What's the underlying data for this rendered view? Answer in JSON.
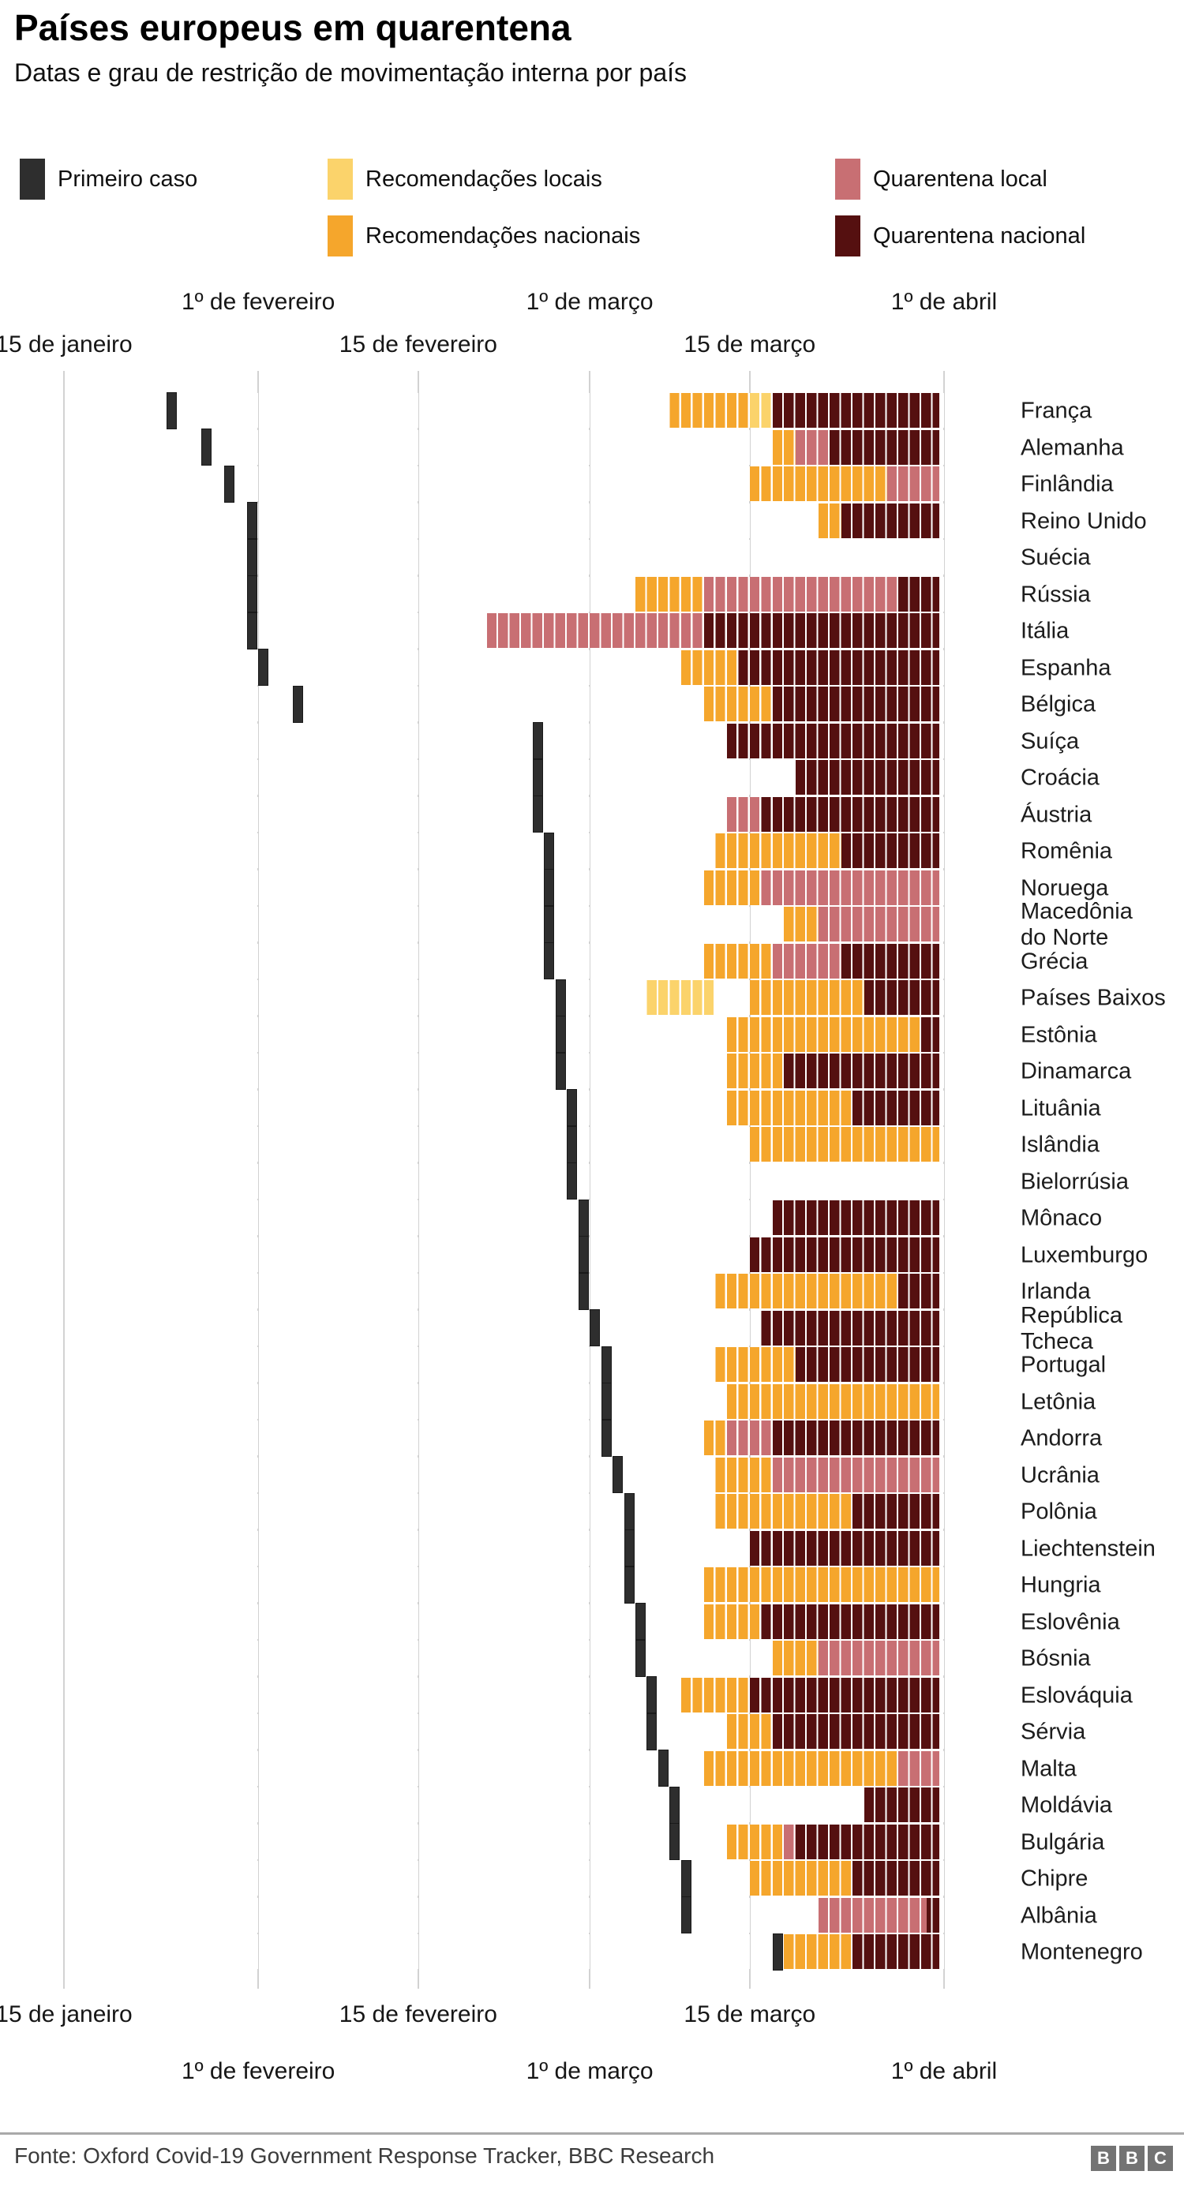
{
  "title": "Países europeus em quarentena",
  "subtitle": "Datas e grau de restrição de movimentação interna por país",
  "legend": {
    "items": [
      {
        "key": "first_case",
        "label": "Primeiro caso"
      },
      {
        "key": "local_rec",
        "label": "Recomendações locais"
      },
      {
        "key": "local_q",
        "label": "Quarentena local"
      },
      {
        "key": "national_rec",
        "label": "Recomendações nacionais"
      },
      {
        "key": "national_q",
        "label": "Quarentena nacional"
      }
    ]
  },
  "colors": {
    "first_case": "#2e2e2e",
    "first_case_border": "#1a1a1a",
    "local_rec": "#fbd36b",
    "national_rec": "#f5a62c",
    "local_q": "#c86f73",
    "national_q": "#551010",
    "gridline": "#d2d2d2",
    "cell_separator": "#ffffff"
  },
  "chart_data": {
    "type": "timeline-bar",
    "title": "Países europeus em quarentena",
    "subtitle": "Datas e grau de restrição de movimentação interna por país",
    "x_unit": "days since 15 de janeiro 2020",
    "x_range": [
      0,
      77
    ],
    "grid_days": [
      0,
      17,
      31,
      46,
      60,
      77
    ],
    "axis_ticks_upper": [
      {
        "label": "1º de fevereiro",
        "day": 17
      },
      {
        "label": "1º de março",
        "day": 46
      },
      {
        "label": "1º de abril",
        "day": 77
      }
    ],
    "axis_ticks_lower": [
      {
        "label": "15 de janeiro",
        "day": 0
      },
      {
        "label": "15 de fevereiro",
        "day": 31
      },
      {
        "label": "15 de março",
        "day": 60
      }
    ],
    "series_categories": {
      "local_rec": "Recomendações locais",
      "national_rec": "Recomendações nacionais",
      "local_q": "Quarentena local",
      "national_q": "Quarentena nacional"
    },
    "countries": [
      {
        "name": "França",
        "first_case_day": 9,
        "segments": [
          {
            "cat": "national_rec",
            "start": 53,
            "end": 60
          },
          {
            "cat": "local_rec",
            "start": 60,
            "end": 62
          },
          {
            "cat": "national_q",
            "start": 62,
            "end": 76.6
          }
        ]
      },
      {
        "name": "Alemanha",
        "first_case_day": 12,
        "segments": [
          {
            "cat": "national_rec",
            "start": 62,
            "end": 64
          },
          {
            "cat": "local_q",
            "start": 64,
            "end": 67
          },
          {
            "cat": "national_q",
            "start": 67,
            "end": 76.6
          }
        ]
      },
      {
        "name": "Finlândia",
        "first_case_day": 14,
        "segments": [
          {
            "cat": "national_rec",
            "start": 60,
            "end": 72
          },
          {
            "cat": "local_q",
            "start": 72,
            "end": 76.6
          }
        ]
      },
      {
        "name": "Reino Unido",
        "first_case_day": 16,
        "segments": [
          {
            "cat": "national_rec",
            "start": 66,
            "end": 68
          },
          {
            "cat": "national_q",
            "start": 68,
            "end": 76.6
          }
        ]
      },
      {
        "name": "Suécia",
        "first_case_day": 16,
        "segments": []
      },
      {
        "name": "Rússia",
        "first_case_day": 16,
        "segments": [
          {
            "cat": "national_rec",
            "start": 50,
            "end": 56
          },
          {
            "cat": "local_q",
            "start": 56,
            "end": 73
          },
          {
            "cat": "national_q",
            "start": 73,
            "end": 76.6
          }
        ]
      },
      {
        "name": "Itália",
        "first_case_day": 16,
        "segments": [
          {
            "cat": "local_q",
            "start": 37,
            "end": 56
          },
          {
            "cat": "national_q",
            "start": 56,
            "end": 76.6
          }
        ]
      },
      {
        "name": "Espanha",
        "first_case_day": 17,
        "segments": [
          {
            "cat": "national_rec",
            "start": 54,
            "end": 59
          },
          {
            "cat": "national_q",
            "start": 59,
            "end": 76.6
          }
        ]
      },
      {
        "name": "Bélgica",
        "first_case_day": 20,
        "segments": [
          {
            "cat": "national_rec",
            "start": 56,
            "end": 62
          },
          {
            "cat": "national_q",
            "start": 62,
            "end": 76.6
          }
        ]
      },
      {
        "name": "Suíça",
        "first_case_day": 41,
        "segments": [
          {
            "cat": "national_q",
            "start": 58,
            "end": 76.6
          }
        ]
      },
      {
        "name": "Croácia",
        "first_case_day": 41,
        "segments": [
          {
            "cat": "national_q",
            "start": 64,
            "end": 76.6
          }
        ]
      },
      {
        "name": "Áustria",
        "first_case_day": 41,
        "segments": [
          {
            "cat": "local_q",
            "start": 58,
            "end": 61
          },
          {
            "cat": "national_q",
            "start": 61,
            "end": 76.6
          }
        ]
      },
      {
        "name": "Romênia",
        "first_case_day": 42,
        "segments": [
          {
            "cat": "national_rec",
            "start": 57,
            "end": 68
          },
          {
            "cat": "national_q",
            "start": 68,
            "end": 76.6
          }
        ]
      },
      {
        "name": "Noruega",
        "first_case_day": 42,
        "segments": [
          {
            "cat": "national_rec",
            "start": 56,
            "end": 61
          },
          {
            "cat": "local_q",
            "start": 61,
            "end": 76.6
          }
        ]
      },
      {
        "name": "Macedônia do Norte",
        "lines": [
          "Macedônia",
          "do Norte"
        ],
        "first_case_day": 42,
        "segments": [
          {
            "cat": "national_rec",
            "start": 63,
            "end": 66
          },
          {
            "cat": "local_q",
            "start": 66,
            "end": 76.6
          }
        ]
      },
      {
        "name": "Grécia",
        "first_case_day": 42,
        "segments": [
          {
            "cat": "national_rec",
            "start": 56,
            "end": 62
          },
          {
            "cat": "local_q",
            "start": 62,
            "end": 68
          },
          {
            "cat": "national_q",
            "start": 68,
            "end": 76.6
          }
        ]
      },
      {
        "name": "Países Baixos",
        "first_case_day": 43,
        "segments": [
          {
            "cat": "local_rec",
            "start": 51,
            "end": 57
          },
          {
            "cat": "national_rec",
            "start": 60,
            "end": 70
          },
          {
            "cat": "national_q",
            "start": 70,
            "end": 76.6
          }
        ]
      },
      {
        "name": "Estônia",
        "first_case_day": 43,
        "segments": [
          {
            "cat": "national_rec",
            "start": 58,
            "end": 75
          },
          {
            "cat": "national_q",
            "start": 75,
            "end": 76.6
          }
        ]
      },
      {
        "name": "Dinamarca",
        "first_case_day": 43,
        "segments": [
          {
            "cat": "national_rec",
            "start": 58,
            "end": 63
          },
          {
            "cat": "national_q",
            "start": 63,
            "end": 76.6
          }
        ]
      },
      {
        "name": "Lituânia",
        "first_case_day": 44,
        "segments": [
          {
            "cat": "national_rec",
            "start": 58,
            "end": 69
          },
          {
            "cat": "national_q",
            "start": 69,
            "end": 76.6
          }
        ]
      },
      {
        "name": "Islândia",
        "first_case_day": 44,
        "segments": [
          {
            "cat": "national_rec",
            "start": 60,
            "end": 76.6
          }
        ]
      },
      {
        "name": "Bielorrúsia",
        "first_case_day": 44,
        "segments": []
      },
      {
        "name": "Mônaco",
        "first_case_day": 45,
        "segments": [
          {
            "cat": "national_q",
            "start": 62,
            "end": 76.6
          }
        ]
      },
      {
        "name": "Luxemburgo",
        "first_case_day": 45,
        "segments": [
          {
            "cat": "national_q",
            "start": 60,
            "end": 76.6
          }
        ]
      },
      {
        "name": "Irlanda",
        "first_case_day": 45,
        "segments": [
          {
            "cat": "national_rec",
            "start": 57,
            "end": 73
          },
          {
            "cat": "national_q",
            "start": 73,
            "end": 76.6
          }
        ]
      },
      {
        "name": "República Tcheca",
        "lines": [
          "República",
          "Tcheca"
        ],
        "first_case_day": 46,
        "segments": [
          {
            "cat": "national_q",
            "start": 61,
            "end": 76.6
          }
        ]
      },
      {
        "name": "Portugal",
        "first_case_day": 47,
        "segments": [
          {
            "cat": "national_rec",
            "start": 57,
            "end": 64
          },
          {
            "cat": "national_q",
            "start": 64,
            "end": 76.6
          }
        ]
      },
      {
        "name": "Letônia",
        "first_case_day": 47,
        "segments": [
          {
            "cat": "national_rec",
            "start": 58,
            "end": 76.6
          }
        ]
      },
      {
        "name": "Andorra",
        "first_case_day": 47,
        "segments": [
          {
            "cat": "national_rec",
            "start": 56,
            "end": 58
          },
          {
            "cat": "local_q",
            "start": 58,
            "end": 62
          },
          {
            "cat": "national_q",
            "start": 62,
            "end": 76.6
          }
        ]
      },
      {
        "name": "Ucrânia",
        "first_case_day": 48,
        "segments": [
          {
            "cat": "national_rec",
            "start": 57,
            "end": 62
          },
          {
            "cat": "local_q",
            "start": 62,
            "end": 76.6
          }
        ]
      },
      {
        "name": "Polônia",
        "first_case_day": 49,
        "segments": [
          {
            "cat": "national_rec",
            "start": 57,
            "end": 69
          },
          {
            "cat": "national_q",
            "start": 69,
            "end": 76.6
          }
        ]
      },
      {
        "name": "Liechtenstein",
        "first_case_day": 49,
        "segments": [
          {
            "cat": "national_q",
            "start": 60,
            "end": 76.6
          }
        ]
      },
      {
        "name": "Hungria",
        "first_case_day": 49,
        "segments": [
          {
            "cat": "national_rec",
            "start": 56,
            "end": 76.6
          }
        ]
      },
      {
        "name": "Eslovênia",
        "first_case_day": 50,
        "segments": [
          {
            "cat": "national_rec",
            "start": 56,
            "end": 61
          },
          {
            "cat": "national_q",
            "start": 61,
            "end": 76.6
          }
        ]
      },
      {
        "name": "Bósnia",
        "first_case_day": 50,
        "segments": [
          {
            "cat": "national_rec",
            "start": 62,
            "end": 66
          },
          {
            "cat": "local_q",
            "start": 66,
            "end": 76.6
          }
        ]
      },
      {
        "name": "Eslováquia",
        "first_case_day": 51,
        "segments": [
          {
            "cat": "national_rec",
            "start": 54,
            "end": 60
          },
          {
            "cat": "national_q",
            "start": 60,
            "end": 76.6
          }
        ]
      },
      {
        "name": "Sérvia",
        "first_case_day": 51,
        "segments": [
          {
            "cat": "national_rec",
            "start": 58,
            "end": 62
          },
          {
            "cat": "national_q",
            "start": 62,
            "end": 76.6
          }
        ]
      },
      {
        "name": "Malta",
        "first_case_day": 52,
        "segments": [
          {
            "cat": "national_rec",
            "start": 56,
            "end": 73
          },
          {
            "cat": "local_q",
            "start": 73,
            "end": 76.6
          }
        ]
      },
      {
        "name": "Moldávia",
        "first_case_day": 53,
        "segments": [
          {
            "cat": "national_q",
            "start": 70,
            "end": 76.6
          }
        ]
      },
      {
        "name": "Bulgária",
        "first_case_day": 53,
        "segments": [
          {
            "cat": "national_rec",
            "start": 58,
            "end": 63
          },
          {
            "cat": "local_q",
            "start": 63,
            "end": 64
          },
          {
            "cat": "national_q",
            "start": 64,
            "end": 76.6
          }
        ]
      },
      {
        "name": "Chipre",
        "first_case_day": 54,
        "segments": [
          {
            "cat": "national_rec",
            "start": 60,
            "end": 69
          },
          {
            "cat": "national_q",
            "start": 69,
            "end": 76.6
          }
        ]
      },
      {
        "name": "Albânia",
        "first_case_day": 54,
        "segments": [
          {
            "cat": "local_q",
            "start": 66,
            "end": 75.5
          },
          {
            "cat": "national_q",
            "start": 75.5,
            "end": 76.6
          }
        ]
      },
      {
        "name": "Montenegro",
        "first_case_day": 62,
        "segments": [
          {
            "cat": "national_rec",
            "start": 63,
            "end": 69
          },
          {
            "cat": "national_q",
            "start": 69,
            "end": 76.6
          }
        ]
      }
    ]
  },
  "footer": {
    "source": "Fonte: Oxford Covid-19 Government Response Tracker, BBC Research",
    "logo_letters": [
      "B",
      "B",
      "C"
    ]
  }
}
